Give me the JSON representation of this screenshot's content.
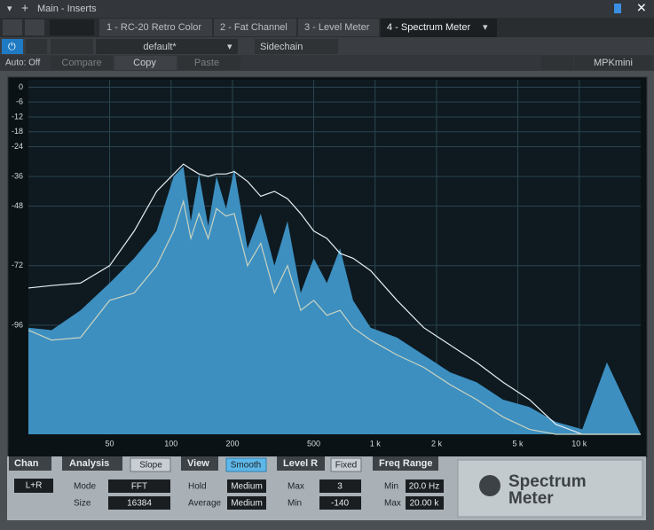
{
  "ui": {
    "header": {
      "title": "Main - Inserts"
    },
    "tabs": [
      "1 - RC-20 Retro Color",
      "2 - Fat Channel",
      "3 - Level Meter",
      "4 - Spectrum Meter"
    ],
    "toolbar": {
      "preset": "default*",
      "sidechain": "Sidechain",
      "auto": "Auto: Off",
      "compare": "Compare",
      "copy": "Copy",
      "paste": "Paste",
      "device": "MPKmini"
    },
    "panels": {
      "chan": {
        "title": "Chan",
        "value": "L+R"
      },
      "analysis": {
        "title": "Analysis",
        "slope": "Slope",
        "mode_label": "Mode",
        "mode": "FFT",
        "size_label": "Size",
        "size": "16384"
      },
      "view": {
        "title": "View",
        "smooth": "Smooth",
        "hold_label": "Hold",
        "hold": "Medium",
        "average_label": "Average",
        "average": "Medium"
      },
      "level": {
        "title": "Level R",
        "fixed": "Fixed",
        "max_label": "Max",
        "max": "3",
        "min_label": "Min",
        "min": "-140"
      },
      "freq": {
        "title": "Freq Range",
        "min_label": "Min",
        "min": "20.0 Hz",
        "max_label": "Max",
        "max": "20.00 k"
      }
    },
    "logo": [
      "Spectrum",
      "Meter"
    ]
  },
  "chart_data": {
    "type": "spectrum",
    "log_x": true,
    "grid": true,
    "xlim": [
      20,
      20000
    ],
    "ylim": [
      -140,
      3
    ],
    "xticks": [
      50,
      100,
      200,
      500,
      {
        "value": 1000,
        "label": "1 k"
      },
      {
        "value": 2000,
        "label": "2 k"
      },
      {
        "value": 5000,
        "label": "5 k"
      },
      {
        "value": 10000,
        "label": "10 k"
      }
    ],
    "yticks": [
      0,
      -6,
      -12,
      -18,
      -24,
      -36,
      -48,
      -72,
      -96
    ],
    "x": [
      20,
      26,
      36,
      50,
      66,
      85,
      103,
      115,
      125,
      137,
      152,
      167,
      186,
      204,
      237,
      275,
      321,
      372,
      432,
      500,
      580,
      673,
      780,
      950,
      1280,
      1730,
      2330,
      3140,
      4230,
      5700,
      7680,
      10350,
      13660,
      20000
    ],
    "series": [
      {
        "style": "area",
        "color": "#3d8fc0",
        "values": [
          -97,
          -98,
          -90,
          -79,
          -69,
          -58,
          -36,
          -32,
          -54,
          -35,
          -56,
          -36,
          -49,
          -33,
          -65,
          -51,
          -72,
          -54,
          -83,
          -69,
          -79,
          -65,
          -86,
          -97,
          -101,
          -108,
          -115,
          -119,
          -126,
          -129,
          -135,
          -138,
          -111,
          -140
        ]
      },
      {
        "style": "line",
        "color": "#e8eef2",
        "values": [
          -81,
          -80,
          -79,
          -72,
          -58,
          -42,
          -35,
          -31,
          -33,
          -35,
          -36,
          -35,
          -35,
          -34,
          -38,
          -44,
          -42,
          -45,
          -51,
          -58,
          -61,
          -67,
          -69,
          -74,
          -86,
          -97,
          -104,
          -111,
          -119,
          -126,
          -136,
          -140,
          -140,
          -140
        ]
      },
      {
        "style": "line",
        "color": "#c9d3c0",
        "values": [
          -98,
          -102,
          -101,
          -86,
          -83,
          -72,
          -58,
          -46,
          -61,
          -51,
          -61,
          -49,
          -52,
          -51,
          -72,
          -63,
          -83,
          -72,
          -90,
          -86,
          -92,
          -90,
          -97,
          -102,
          -108,
          -113,
          -120,
          -126,
          -133,
          -138,
          -140,
          -140,
          -140,
          -140
        ]
      }
    ]
  }
}
